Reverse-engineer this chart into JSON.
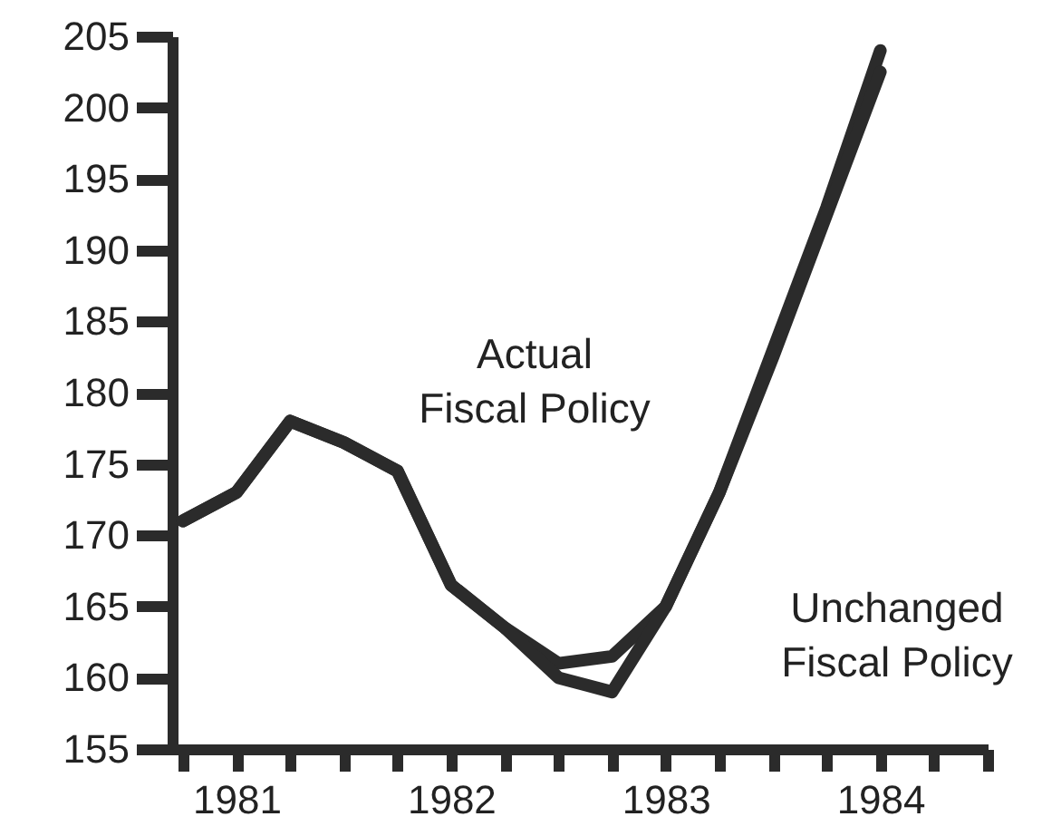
{
  "chart_data": {
    "type": "line",
    "x": [
      1981.25,
      1981.5,
      1981.75,
      1982.0,
      1982.25,
      1982.5,
      1982.75,
      1983.0,
      1983.25,
      1983.5,
      1983.75,
      1984.0,
      1984.25,
      1984.5
    ],
    "series": [
      {
        "name": "Actual Fiscal Policy",
        "color": "#2b2b2b",
        "values": [
          171,
          173,
          178,
          176.5,
          174.5,
          166.5,
          163.5,
          161,
          161.5,
          165,
          173,
          183,
          193,
          204
        ]
      },
      {
        "name": "Unchanged Fiscal Policy",
        "color": "#2b2b2b",
        "values": [
          171,
          173,
          178,
          176.5,
          174.5,
          166.5,
          163.5,
          160,
          159,
          165,
          173,
          182.5,
          192.5,
          202.5
        ]
      }
    ],
    "xlim": [
      1981.2,
      1985.0
    ],
    "xticks": [
      {
        "value": 1981.25,
        "label": null
      },
      {
        "value": 1981.5,
        "label": "1981"
      },
      {
        "value": 1981.75,
        "label": null
      },
      {
        "value": 1982.0,
        "label": null
      },
      {
        "value": 1982.25,
        "label": null
      },
      {
        "value": 1982.5,
        "label": "1982"
      },
      {
        "value": 1982.75,
        "label": null
      },
      {
        "value": 1983.0,
        "label": null
      },
      {
        "value": 1983.25,
        "label": null
      },
      {
        "value": 1983.5,
        "label": "1983"
      },
      {
        "value": 1983.75,
        "label": null
      },
      {
        "value": 1984.0,
        "label": null
      },
      {
        "value": 1984.25,
        "label": null
      },
      {
        "value": 1984.5,
        "label": "1984"
      },
      {
        "value": 1984.75,
        "label": null
      },
      {
        "value": 1985.0,
        "label": null
      }
    ],
    "ylim": [
      155,
      205
    ],
    "yticks": [
      155,
      160,
      165,
      170,
      175,
      180,
      185,
      190,
      195,
      200,
      205
    ],
    "grid": false,
    "legend": false,
    "marker": "none",
    "line_style": "solid"
  }
}
